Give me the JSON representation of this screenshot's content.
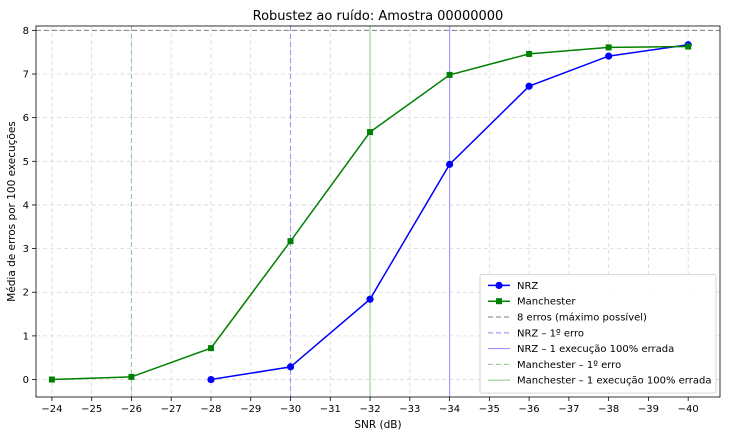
{
  "chart_data": {
    "type": "line",
    "title": "Robustez ao ruído: Amostra 00000000",
    "xlabel": "SNR (dB)",
    "ylabel": "Média de erros por 100 execuções",
    "xlim": [
      -23.6,
      -40.8
    ],
    "ylim": [
      -0.4,
      8.1
    ],
    "xticks": [
      -24,
      -25,
      -26,
      -27,
      -28,
      -29,
      -30,
      -31,
      -32,
      -33,
      -34,
      -35,
      -36,
      -37,
      -38,
      -39,
      -40
    ],
    "xtick_labels": [
      "−24",
      "−25",
      "−26",
      "−27",
      "−28",
      "−29",
      "−30",
      "−31",
      "−32",
      "−33",
      "−34",
      "−35",
      "−36",
      "−37",
      "−38",
      "−39",
      "−40"
    ],
    "yticks": [
      0,
      1,
      2,
      3,
      4,
      5,
      6,
      7,
      8
    ],
    "ytick_labels": [
      "0",
      "1",
      "2",
      "3",
      "4",
      "5",
      "6",
      "7",
      "8"
    ],
    "grid": true,
    "legend_position": "lower-right",
    "series": [
      {
        "name": "NRZ",
        "color": "#0000ff",
        "marker": "circle",
        "x": [
          -28,
          -30,
          -32,
          -34,
          -36,
          -38,
          -40
        ],
        "y": [
          0.0,
          0.29,
          1.84,
          4.93,
          6.72,
          7.41,
          7.67
        ]
      },
      {
        "name": "Manchester",
        "color": "#008000",
        "marker": "square",
        "x": [
          -24,
          -26,
          -28,
          -30,
          -32,
          -34,
          -36,
          -38,
          -40
        ],
        "y": [
          0.0,
          0.06,
          0.72,
          3.17,
          5.67,
          6.98,
          7.46,
          7.61,
          7.63
        ]
      }
    ],
    "reference_lines": [
      {
        "name": "8 erros (máximo possível)",
        "orientation": "horizontal",
        "value": 8,
        "color": "#808080",
        "style": "dashed"
      },
      {
        "name": "NRZ – 1º erro",
        "orientation": "vertical",
        "value": -30,
        "color": "#9999ff",
        "style": "dashed"
      },
      {
        "name": "NRZ – 1 execução 100% errada",
        "orientation": "vertical",
        "value": -34,
        "color": "#9999ff",
        "style": "solid"
      },
      {
        "name": "Manchester – 1º erro",
        "orientation": "vertical",
        "value": -26,
        "color": "#99cc99",
        "style": "dashed"
      },
      {
        "name": "Manchester – 1 execução 100% errada",
        "orientation": "vertical",
        "value": -32,
        "color": "#99cc99",
        "style": "solid"
      }
    ]
  }
}
